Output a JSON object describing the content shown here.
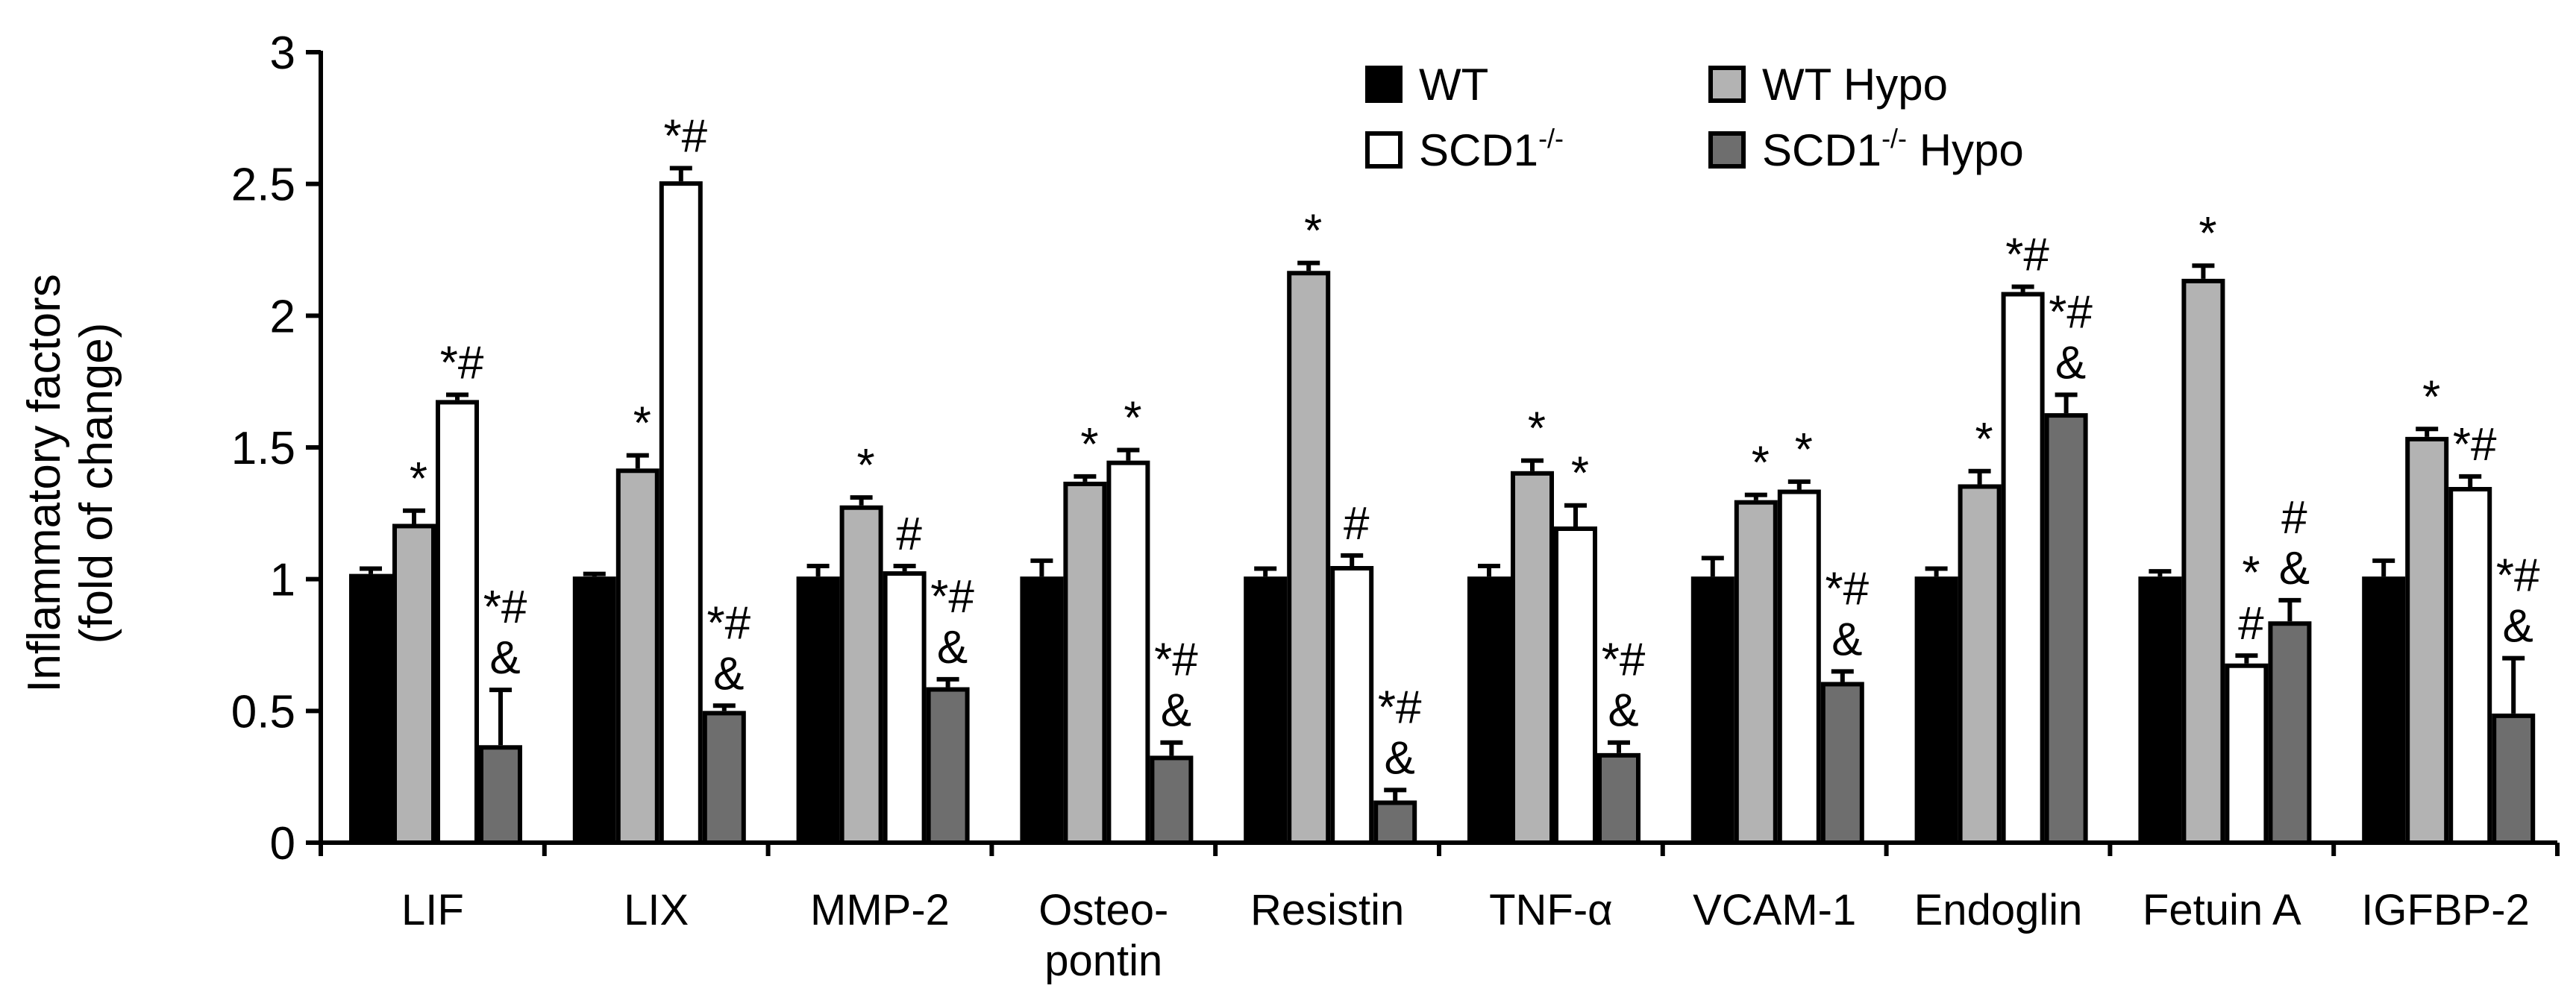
{
  "chart_data": {
    "type": "bar",
    "title": "",
    "xlabel": "",
    "ylabel": [
      "Inflammatory factors",
      "(fold of change)"
    ],
    "ylim": [
      0,
      3
    ],
    "yticks": [
      "0",
      "0.5",
      "1",
      "1.5",
      "2",
      "2.5",
      "3"
    ],
    "categories": [
      [
        "LIF"
      ],
      [
        "LIX"
      ],
      [
        "MMP-2"
      ],
      [
        "Osteo-",
        "pontin"
      ],
      [
        "Resistin"
      ],
      [
        "TNF-α"
      ],
      [
        "VCAM-1"
      ],
      [
        "Endoglin"
      ],
      [
        "Fetuin A"
      ],
      [
        "IGFBP-2"
      ]
    ],
    "series": [
      {
        "name": "WT",
        "sup": "",
        "suffix": "",
        "color": "#000000",
        "values": [
          1.02,
          1.01,
          1.01,
          1.01,
          1.01,
          1.01,
          1.01,
          1.01,
          1.01,
          1.01
        ],
        "errors": [
          0.02,
          0.01,
          0.04,
          0.06,
          0.03,
          0.04,
          0.07,
          0.03,
          0.02,
          0.06
        ],
        "annotations": [
          [],
          [],
          [],
          [],
          [],
          [],
          [],
          [],
          [],
          []
        ]
      },
      {
        "name": "WT Hypo",
        "sup": "",
        "suffix": "",
        "color": "#b3b3b3",
        "values": [
          1.21,
          1.42,
          1.28,
          1.37,
          2.17,
          1.41,
          1.3,
          1.36,
          2.14,
          1.54
        ],
        "errors": [
          0.05,
          0.05,
          0.03,
          0.02,
          0.03,
          0.04,
          0.02,
          0.05,
          0.05,
          0.03
        ],
        "annotations": [
          [
            "*"
          ],
          [
            "*"
          ],
          [
            "*"
          ],
          [
            "*"
          ],
          [
            "*"
          ],
          [
            "*"
          ],
          [
            "*"
          ],
          [
            "*"
          ],
          [
            "*"
          ],
          [
            "*"
          ]
        ]
      },
      {
        "name": "SCD1",
        "sup": "-/-",
        "suffix": "",
        "color": "#ffffff",
        "values": [
          1.68,
          2.51,
          1.03,
          1.45,
          1.05,
          1.2,
          1.34,
          2.09,
          0.68,
          1.35
        ],
        "errors": [
          0.02,
          0.05,
          0.02,
          0.04,
          0.04,
          0.08,
          0.03,
          0.02,
          0.03,
          0.04
        ],
        "annotations": [
          [
            "*#"
          ],
          [
            "*#"
          ],
          [
            "#"
          ],
          [
            "*"
          ],
          [
            "#"
          ],
          [
            "*"
          ],
          [
            "*"
          ],
          [
            "*#"
          ],
          [
            "*",
            "#"
          ],
          [
            "*#"
          ]
        ]
      },
      {
        "name": "SCD1",
        "sup": "-/-",
        "suffix": " Hypo",
        "color": "#6e6e6e",
        "values": [
          0.37,
          0.5,
          0.59,
          0.33,
          0.16,
          0.34,
          0.61,
          1.63,
          0.84,
          0.49
        ],
        "errors": [
          0.21,
          0.02,
          0.03,
          0.05,
          0.04,
          0.04,
          0.04,
          0.07,
          0.08,
          0.21
        ],
        "annotations": [
          [
            "*#",
            "&"
          ],
          [
            "*#",
            "&"
          ],
          [
            "*#",
            "&"
          ],
          [
            "*#",
            "&"
          ],
          [
            "*#",
            "&"
          ],
          [
            "*#",
            "&"
          ],
          [
            "*#",
            "&"
          ],
          [
            "*#",
            "&"
          ],
          [
            "#",
            "&"
          ],
          [
            "*#",
            "&"
          ]
        ]
      }
    ],
    "legend_position": "top-right",
    "grid": false
  }
}
